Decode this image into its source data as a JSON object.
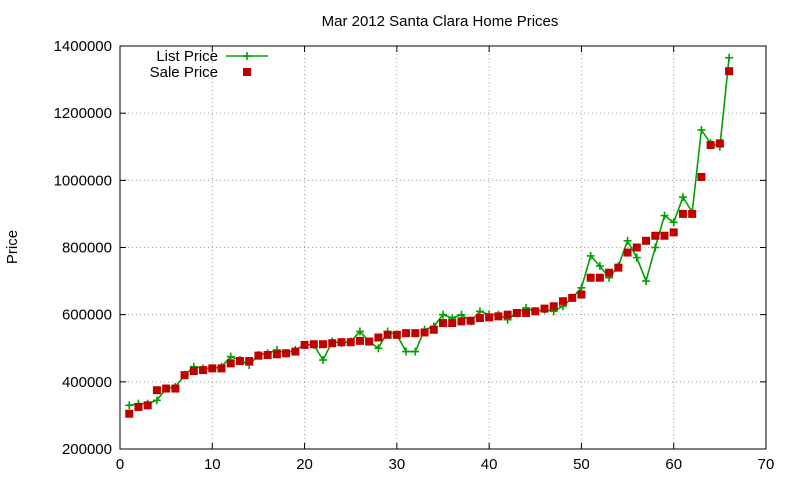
{
  "chart_data": {
    "type": "line",
    "title": "Mar 2012 Santa Clara Home Prices",
    "xlabel": "",
    "ylabel": "Price",
    "xlim": [
      0,
      70
    ],
    "ylim": [
      200000,
      1400000
    ],
    "x_ticks": [
      "0",
      "10",
      "20",
      "30",
      "40",
      "50",
      "60",
      "70"
    ],
    "y_ticks": [
      "200000",
      "400000",
      "600000",
      "800000",
      "1000000",
      "1200000",
      "1400000"
    ],
    "grid": true,
    "legend_position": "top-left",
    "series": [
      {
        "name": "List Price",
        "style": "line+plus",
        "color": "#00a000",
        "x": [
          1,
          2,
          3,
          4,
          5,
          6,
          7,
          8,
          9,
          10,
          11,
          12,
          13,
          14,
          15,
          16,
          17,
          18,
          19,
          20,
          21,
          22,
          23,
          24,
          25,
          26,
          27,
          28,
          29,
          30,
          31,
          32,
          33,
          34,
          35,
          36,
          37,
          38,
          39,
          40,
          41,
          42,
          43,
          44,
          45,
          46,
          47,
          48,
          49,
          50,
          51,
          52,
          53,
          54,
          55,
          56,
          57,
          58,
          59,
          60,
          61,
          62,
          63,
          64,
          65,
          66
        ],
        "values": [
          330000,
          335000,
          335000,
          345000,
          380000,
          385000,
          420000,
          445000,
          440000,
          440000,
          445000,
          475000,
          465000,
          450000,
          480000,
          485000,
          495000,
          485000,
          495000,
          510000,
          510000,
          465000,
          520000,
          515000,
          520000,
          550000,
          520000,
          500000,
          550000,
          540000,
          490000,
          490000,
          555000,
          565000,
          600000,
          590000,
          600000,
          580000,
          610000,
          600000,
          600000,
          585000,
          605000,
          620000,
          610000,
          615000,
          610000,
          625000,
          650000,
          680000,
          775000,
          745000,
          710000,
          745000,
          820000,
          770000,
          700000,
          800000,
          895000,
          875000,
          950000,
          905000,
          1150000,
          1110000,
          1100000,
          1365000
        ]
      },
      {
        "name": "Sale Price",
        "style": "square",
        "color": "#c00000",
        "x": [
          1,
          2,
          3,
          4,
          5,
          6,
          7,
          8,
          9,
          10,
          11,
          12,
          13,
          14,
          15,
          16,
          17,
          18,
          19,
          20,
          21,
          22,
          23,
          24,
          25,
          26,
          27,
          28,
          29,
          30,
          31,
          32,
          33,
          34,
          35,
          36,
          37,
          38,
          39,
          40,
          41,
          42,
          43,
          44,
          45,
          46,
          47,
          48,
          49,
          50,
          51,
          52,
          53,
          54,
          55,
          56,
          57,
          58,
          59,
          60,
          61,
          62,
          63,
          64,
          65,
          66
        ],
        "values": [
          305000,
          325000,
          330000,
          375000,
          380000,
          380000,
          420000,
          432000,
          435000,
          440000,
          440000,
          455000,
          462000,
          462000,
          478000,
          480000,
          482000,
          485000,
          490000,
          510000,
          512000,
          512000,
          515000,
          518000,
          518000,
          522000,
          520000,
          532000,
          540000,
          540000,
          545000,
          545000,
          547000,
          555000,
          575000,
          575000,
          580000,
          582000,
          590000,
          592000,
          595000,
          600000,
          605000,
          605000,
          610000,
          618000,
          625000,
          640000,
          650000,
          660000,
          710000,
          710000,
          725000,
          740000,
          785000,
          800000,
          820000,
          835000,
          835000,
          845000,
          900000,
          900000,
          1010000,
          1105000,
          1110000,
          1325000
        ]
      }
    ]
  }
}
